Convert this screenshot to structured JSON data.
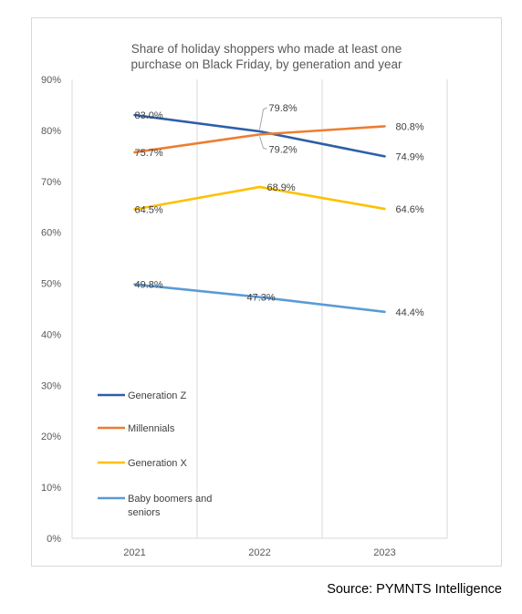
{
  "chart_data": {
    "type": "line",
    "title_lines": [
      "Share of holiday shoppers who made at least one",
      "purchase on Black Friday, by generation and year"
    ],
    "categories": [
      "2021",
      "2022",
      "2023"
    ],
    "ylim": [
      0,
      90
    ],
    "yticks": [
      "0%",
      "10%",
      "20%",
      "30%",
      "40%",
      "50%",
      "60%",
      "70%",
      "80%",
      "90%"
    ],
    "grid": "vertical",
    "legend_placement": "lower-left",
    "series": [
      {
        "name": "Generation Z",
        "color": "#2e5fa8",
        "values": [
          83.0,
          79.8,
          74.9
        ],
        "labels": [
          "83.0%",
          "79.8%",
          "74.9%"
        ]
      },
      {
        "name": "Millennials",
        "color": "#ed7d31",
        "values": [
          75.7,
          79.2,
          80.8
        ],
        "labels": [
          "75.7%",
          "79.2%",
          "80.8%"
        ]
      },
      {
        "name": "Generation X",
        "color": "#ffc000",
        "values": [
          64.5,
          68.9,
          64.6
        ],
        "labels": [
          "64.5%",
          "68.9%",
          "64.6%"
        ]
      },
      {
        "name_lines": [
          "Baby boomers and",
          "seniors"
        ],
        "color": "#5b9bd5",
        "values": [
          49.8,
          47.3,
          44.4
        ],
        "labels": [
          "49.8%",
          "47.3%",
          "44.4%"
        ]
      }
    ]
  },
  "source": "Source: PYMNTS Intelligence"
}
